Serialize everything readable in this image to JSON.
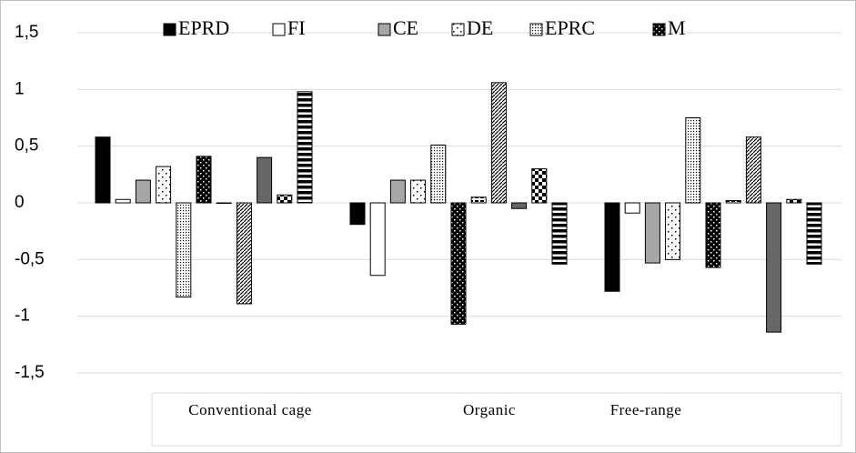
{
  "chart_data": {
    "type": "bar",
    "categories": [
      "Conventional cage",
      "Organic",
      "Free-range"
    ],
    "ylim": [
      -1.5,
      1.5
    ],
    "yticks": [
      {
        "value": 1.5,
        "label": "1,5"
      },
      1,
      {
        "value": 0.5,
        "label": "0,5"
      },
      0,
      {
        "value": -0.5,
        "label": "-0,5"
      },
      -1,
      {
        "value": -1.5,
        "label": "-1,5"
      }
    ],
    "grid": true,
    "legend": "top",
    "series": [
      {
        "name": "EPRD",
        "color": "#000000",
        "pattern": "solid",
        "values": [
          0.58,
          -0.19,
          -0.78
        ]
      },
      {
        "name": "FI",
        "color": "#ffffff",
        "pattern": "solid",
        "values": [
          0.03,
          -0.64,
          -0.09
        ]
      },
      {
        "name": "CE",
        "color": "#a6a6a6",
        "pattern": "solid",
        "values": [
          0.2,
          0.2,
          -0.53
        ]
      },
      {
        "name": "DE",
        "color": "#ffffff",
        "pattern": "sparse-dots",
        "values": [
          0.32,
          0.2,
          -0.5
        ]
      },
      {
        "name": "EPRC",
        "color": "#ffffff",
        "pattern": "dense-dots",
        "values": [
          -0.83,
          0.51,
          0.75
        ]
      },
      {
        "name": "M",
        "color": "#000000",
        "pattern": "white-dots",
        "values": [
          0.41,
          -1.07,
          -0.57
        ]
      },
      {
        "color": "#ffffff",
        "pattern": "dashes",
        "values": [
          0,
          0.05,
          0.02
        ]
      },
      {
        "color": "#ffffff",
        "pattern": "diagonal",
        "values": [
          -0.89,
          1.06,
          0.58
        ]
      },
      {
        "color": "#666666",
        "pattern": "solid",
        "values": [
          0.4,
          -0.05,
          -1.14
        ]
      },
      {
        "color": "#000000",
        "pattern": "checker",
        "values": [
          0.07,
          0.3,
          0.03
        ]
      },
      {
        "color": "#000000",
        "pattern": "hstripes",
        "values": [
          0.98,
          -0.54,
          -0.54
        ]
      }
    ]
  }
}
